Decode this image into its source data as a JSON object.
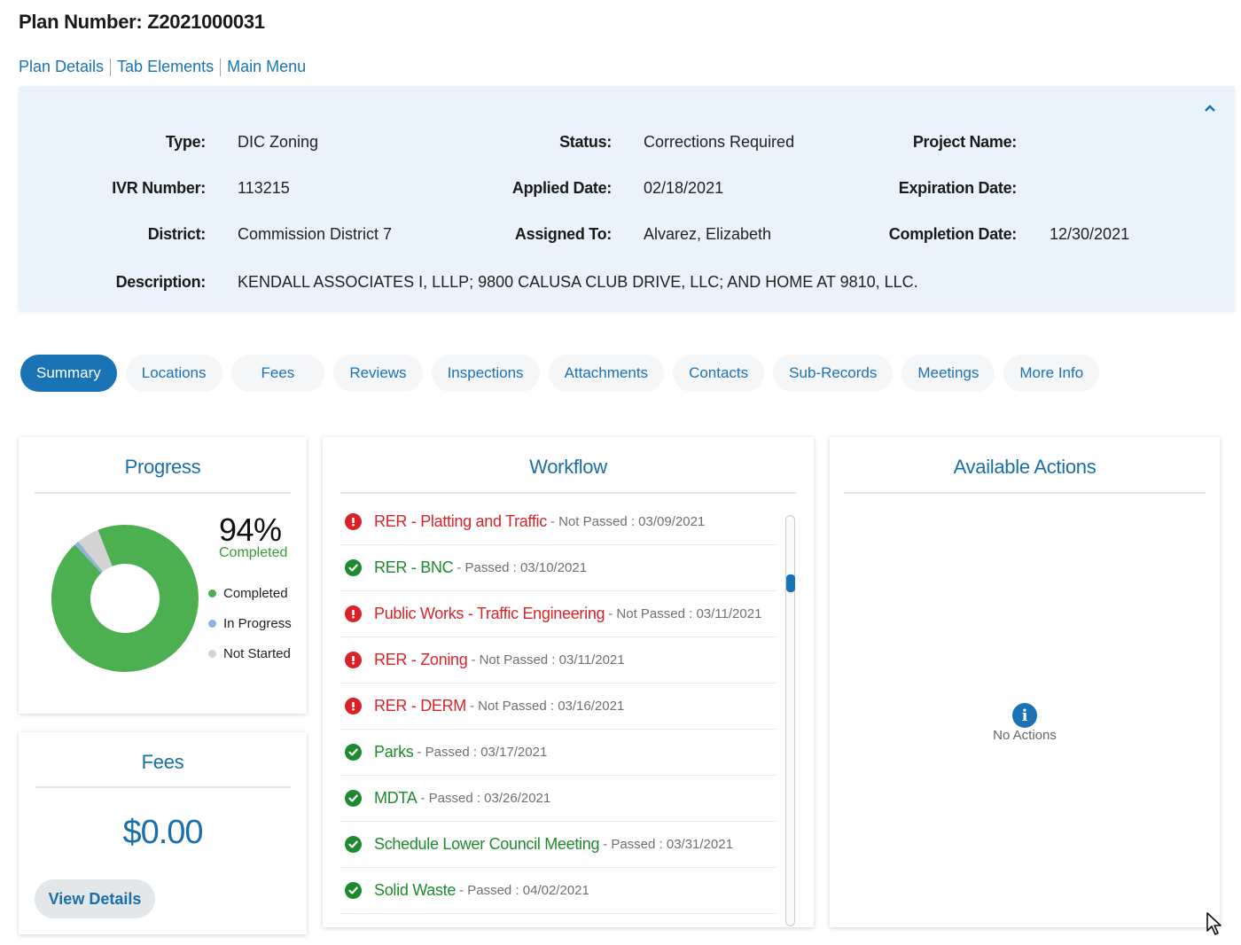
{
  "header": {
    "title": "Plan Number: Z2021000031",
    "links": [
      "Plan Details",
      "Tab Elements",
      "Main Menu"
    ]
  },
  "details": {
    "type_label": "Type:",
    "type": "DIC Zoning",
    "ivr_label": "IVR Number:",
    "ivr": "113215",
    "district_label": "District:",
    "district": "Commission District 7",
    "description_label": "Description:",
    "description": "KENDALL ASSOCIATES I, LLLP; 9800 CALUSA CLUB DRIVE, LLC; AND HOME AT 9810, LLC.",
    "status_label": "Status:",
    "status": "Corrections Required",
    "applied_label": "Applied Date:",
    "applied": "02/18/2021",
    "assigned_label": "Assigned To:",
    "assigned": "Alvarez, Elizabeth",
    "project_label": "Project Name:",
    "project": "",
    "expiration_label": "Expiration Date:",
    "expiration": "",
    "completion_label": "Completion Date:",
    "completion": "12/30/2021"
  },
  "tabs": [
    "Summary",
    "Locations",
    "Fees",
    "Reviews",
    "Inspections",
    "Attachments",
    "Contacts",
    "Sub-Records",
    "Meetings",
    "More Info"
  ],
  "active_tab": "Summary",
  "progress": {
    "title": "Progress",
    "percent_text": "94%",
    "percent_label": "Completed",
    "completed_fraction": 0.94,
    "in_progress_fraction": 0.01,
    "not_started_fraction": 0.05,
    "legend": [
      "Completed",
      "In Progress",
      "Not Started"
    ],
    "colors": {
      "completed": "#4caf50",
      "in_progress": "#8fb3d9",
      "not_started": "#d3d3d3"
    }
  },
  "fees": {
    "title": "Fees",
    "amount": "$0.00",
    "button": "View Details"
  },
  "workflow": {
    "title": "Workflow",
    "items": [
      {
        "name": "RER - Platting and Traffic",
        "status": "- Not Passed : 03/09/2021",
        "state": "fail"
      },
      {
        "name": "RER - BNC",
        "status": "- Passed : 03/10/2021",
        "state": "pass"
      },
      {
        "name": "Public Works - Traffic Engineering",
        "status": "- Not Passed : 03/11/2021",
        "state": "fail"
      },
      {
        "name": "RER - Zoning",
        "status": "- Not Passed : 03/11/2021",
        "state": "fail"
      },
      {
        "name": "RER - DERM",
        "status": "- Not Passed : 03/16/2021",
        "state": "fail"
      },
      {
        "name": "Parks",
        "status": "- Passed : 03/17/2021",
        "state": "pass"
      },
      {
        "name": "MDTA",
        "status": "- Passed : 03/26/2021",
        "state": "pass"
      },
      {
        "name": "Schedule Lower Council Meeting",
        "status": "- Passed : 03/31/2021",
        "state": "pass"
      },
      {
        "name": "Solid Waste",
        "status": "- Passed : 04/02/2021",
        "state": "pass"
      }
    ]
  },
  "actions": {
    "title": "Available Actions",
    "empty_text": "No Actions",
    "empty_icon": "info-icon"
  }
}
